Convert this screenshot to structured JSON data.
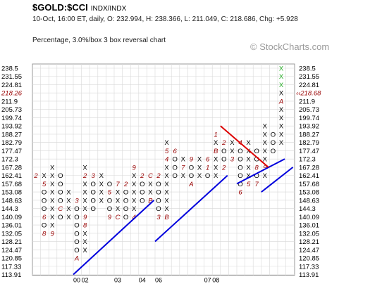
{
  "header": {
    "symbol": "$GOLD:$CCI",
    "subtitle": "INDX/INDX",
    "info": "10-Oct, 16:00 ET, daily, O: 232.994, H: 238.366, L: 211.049, C: 218.686, Chg: +5.928",
    "method": "Percentage, 3.0%/box 3 box reversal chart",
    "watermark": "© StockCharts.com"
  },
  "colors": {
    "x_mark": "#000000",
    "o_mark": "#000000",
    "month_mark": "#990000",
    "recent_x": "#22aa22",
    "trend_up": "#0000dd",
    "trend_down": "#dd0000",
    "grid": "#d8d8d8",
    "last_price": "#990000"
  },
  "chart_data": {
    "type": "point-and-figure",
    "y_labels": [
      "238.5",
      "231.55",
      "224.81",
      "218.26",
      "211.9",
      "205.73",
      "199.74",
      "193.92",
      "188.27",
      "182.79",
      "177.47",
      "172.3",
      "167.28",
      "162.41",
      "157.68",
      "153.08",
      "148.63",
      "144.3",
      "140.09",
      "136.01",
      "132.05",
      "128.21",
      "124.47",
      "120.85",
      "117.33",
      "113.91"
    ],
    "last_price_label": "218.68",
    "last_price_level": "218.26",
    "x_labels": [
      {
        "text": "00",
        "col": 5
      },
      {
        "text": "02",
        "col": 6
      },
      {
        "text": "03",
        "col": 10
      },
      {
        "text": "04",
        "col": 13
      },
      {
        "text": "06",
        "col": 15
      },
      {
        "text": "07",
        "col": 21
      },
      {
        "text": "08",
        "col": 22
      }
    ],
    "columns": [
      {
        "col": 0,
        "type": "X",
        "top": 13,
        "marks": [
          {
            "row": 13,
            "t": "2"
          }
        ]
      },
      {
        "col": 1,
        "type": "O",
        "top": 13,
        "marks": [
          {
            "row": 13,
            "t": "X"
          },
          {
            "row": 14,
            "t": "5"
          },
          {
            "row": 15,
            "t": "O"
          },
          {
            "row": 16,
            "t": "O"
          },
          {
            "row": 17,
            "t": "O"
          },
          {
            "row": 18,
            "t": "6"
          },
          {
            "row": 19,
            "t": "O"
          },
          {
            "row": 20,
            "t": "8"
          }
        ]
      },
      {
        "col": 2,
        "type": "X",
        "top": 12,
        "marks": [
          {
            "row": 12,
            "t": "X"
          },
          {
            "row": 13,
            "t": "X"
          },
          {
            "row": 14,
            "t": "X"
          },
          {
            "row": 15,
            "t": "X"
          },
          {
            "row": 16,
            "t": "X"
          },
          {
            "row": 17,
            "t": "X"
          },
          {
            "row": 18,
            "t": "X"
          },
          {
            "row": 19,
            "t": "X"
          },
          {
            "row": 20,
            "t": "9"
          }
        ]
      },
      {
        "col": 3,
        "type": "O",
        "top": 13,
        "marks": [
          {
            "row": 13,
            "t": "O"
          },
          {
            "row": 14,
            "t": "O"
          },
          {
            "row": 15,
            "t": "O"
          },
          {
            "row": 16,
            "t": "O"
          },
          {
            "row": 17,
            "t": "C"
          },
          {
            "row": 18,
            "t": "O"
          }
        ]
      },
      {
        "col": 4,
        "type": "X",
        "top": 15,
        "marks": [
          {
            "row": 15,
            "t": "X"
          },
          {
            "row": 16,
            "t": "X"
          },
          {
            "row": 17,
            "t": "X"
          },
          {
            "row": 18,
            "t": "X"
          }
        ]
      },
      {
        "col": 5,
        "type": "O",
        "top": 16,
        "marks": [
          {
            "row": 16,
            "t": "3"
          },
          {
            "row": 17,
            "t": "O"
          },
          {
            "row": 18,
            "t": "O"
          },
          {
            "row": 19,
            "t": "O"
          },
          {
            "row": 20,
            "t": "O"
          },
          {
            "row": 21,
            "t": "O"
          },
          {
            "row": 22,
            "t": "O"
          },
          {
            "row": 23,
            "t": "A"
          }
        ]
      },
      {
        "col": 6,
        "type": "X",
        "top": 12,
        "marks": [
          {
            "row": 12,
            "t": "X"
          },
          {
            "row": 13,
            "t": "2"
          },
          {
            "row": 14,
            "t": "X"
          },
          {
            "row": 15,
            "t": "X"
          },
          {
            "row": 16,
            "t": "X"
          },
          {
            "row": 17,
            "t": "X"
          },
          {
            "row": 18,
            "t": "9"
          },
          {
            "row": 19,
            "t": "8"
          },
          {
            "row": 20,
            "t": "X"
          },
          {
            "row": 21,
            "t": "X"
          },
          {
            "row": 22,
            "t": "X"
          }
        ]
      },
      {
        "col": 7,
        "type": "O",
        "top": 13,
        "marks": [
          {
            "row": 13,
            "t": "3"
          },
          {
            "row": 14,
            "t": "O"
          },
          {
            "row": 15,
            "t": "O"
          },
          {
            "row": 16,
            "t": "O"
          },
          {
            "row": 17,
            "t": "O"
          }
        ]
      },
      {
        "col": 8,
        "type": "X",
        "top": 13,
        "marks": [
          {
            "row": 13,
            "t": "X"
          },
          {
            "row": 14,
            "t": "X"
          },
          {
            "row": 15,
            "t": "X"
          },
          {
            "row": 16,
            "t": "X"
          }
        ]
      },
      {
        "col": 9,
        "type": "O",
        "top": 14,
        "marks": [
          {
            "row": 14,
            "t": "O"
          },
          {
            "row": 15,
            "t": "5"
          },
          {
            "row": 16,
            "t": "O"
          },
          {
            "row": 17,
            "t": "O"
          },
          {
            "row": 18,
            "t": "9"
          }
        ]
      },
      {
        "col": 10,
        "type": "X",
        "top": 14,
        "marks": [
          {
            "row": 14,
            "t": "7"
          },
          {
            "row": 15,
            "t": "X"
          },
          {
            "row": 16,
            "t": "X"
          },
          {
            "row": 17,
            "t": "X"
          },
          {
            "row": 18,
            "t": "C"
          }
        ]
      },
      {
        "col": 11,
        "type": "O",
        "top": 14,
        "marks": [
          {
            "row": 14,
            "t": "2"
          },
          {
            "row": 15,
            "t": "O"
          },
          {
            "row": 16,
            "t": "O"
          },
          {
            "row": 17,
            "t": "O"
          },
          {
            "row": 18,
            "t": "O"
          }
        ]
      },
      {
        "col": 12,
        "type": "X",
        "top": 12,
        "marks": [
          {
            "row": 12,
            "t": "9"
          },
          {
            "row": 13,
            "t": "X"
          },
          {
            "row": 14,
            "t": "X"
          },
          {
            "row": 15,
            "t": "X"
          },
          {
            "row": 16,
            "t": "X"
          },
          {
            "row": 17,
            "t": "X"
          },
          {
            "row": 18,
            "t": "4"
          }
        ]
      },
      {
        "col": 13,
        "type": "O",
        "top": 13,
        "marks": [
          {
            "row": 13,
            "t": "2"
          },
          {
            "row": 14,
            "t": "O"
          },
          {
            "row": 15,
            "t": "O"
          },
          {
            "row": 16,
            "t": "O"
          }
        ]
      },
      {
        "col": 14,
        "type": "X",
        "top": 13,
        "marks": [
          {
            "row": 13,
            "t": "C"
          },
          {
            "row": 14,
            "t": "X"
          },
          {
            "row": 15,
            "t": "X"
          },
          {
            "row": 16,
            "t": "B"
          }
        ]
      },
      {
        "col": 15,
        "type": "O",
        "top": 13,
        "marks": [
          {
            "row": 13,
            "t": "2"
          },
          {
            "row": 14,
            "t": "O"
          },
          {
            "row": 15,
            "t": "O"
          },
          {
            "row": 16,
            "t": "O"
          },
          {
            "row": 17,
            "t": "O"
          },
          {
            "row": 18,
            "t": "3"
          }
        ]
      },
      {
        "col": 16,
        "type": "X",
        "top": 9,
        "marks": [
          {
            "row": 9,
            "t": "X"
          },
          {
            "row": 10,
            "t": "5"
          },
          {
            "row": 11,
            "t": "4"
          },
          {
            "row": 12,
            "t": "X"
          },
          {
            "row": 13,
            "t": "X"
          },
          {
            "row": 14,
            "t": "X"
          },
          {
            "row": 15,
            "t": "X"
          },
          {
            "row": 16,
            "t": "X"
          },
          {
            "row": 17,
            "t": "X"
          },
          {
            "row": 18,
            "t": "B"
          }
        ]
      },
      {
        "col": 17,
        "type": "O",
        "top": 10,
        "marks": [
          {
            "row": 10,
            "t": "6"
          },
          {
            "row": 11,
            "t": "O"
          },
          {
            "row": 12,
            "t": "O"
          },
          {
            "row": 13,
            "t": "O"
          }
        ]
      },
      {
        "col": 18,
        "type": "X",
        "top": 11,
        "marks": [
          {
            "row": 11,
            "t": "X"
          },
          {
            "row": 12,
            "t": "7"
          },
          {
            "row": 13,
            "t": "X"
          }
        ]
      },
      {
        "col": 19,
        "type": "O",
        "top": 11,
        "marks": [
          {
            "row": 11,
            "t": "9"
          },
          {
            "row": 12,
            "t": "O"
          },
          {
            "row": 13,
            "t": "O"
          },
          {
            "row": 14,
            "t": "A"
          }
        ]
      },
      {
        "col": 20,
        "type": "X",
        "top": 11,
        "marks": [
          {
            "row": 11,
            "t": "X"
          },
          {
            "row": 12,
            "t": "X"
          },
          {
            "row": 13,
            "t": "X"
          }
        ]
      },
      {
        "col": 21,
        "type": "O",
        "top": 11,
        "marks": [
          {
            "row": 11,
            "t": "6"
          },
          {
            "row": 12,
            "t": "1"
          },
          {
            "row": 13,
            "t": "O"
          }
        ]
      },
      {
        "col": 22,
        "type": "X",
        "top": 8,
        "marks": [
          {
            "row": 8,
            "t": "1"
          },
          {
            "row": 9,
            "t": "X"
          },
          {
            "row": 10,
            "t": "B"
          },
          {
            "row": 11,
            "t": "X"
          },
          {
            "row": 12,
            "t": "X"
          },
          {
            "row": 13,
            "t": "X"
          }
        ]
      },
      {
        "col": 23,
        "type": "O",
        "top": 9,
        "marks": [
          {
            "row": 9,
            "t": "2"
          },
          {
            "row": 10,
            "t": "O"
          },
          {
            "row": 11,
            "t": "O"
          },
          {
            "row": 12,
            "t": "2"
          }
        ]
      },
      {
        "col": 24,
        "type": "X",
        "top": 9,
        "marks": [
          {
            "row": 9,
            "t": "X"
          },
          {
            "row": 10,
            "t": "X"
          },
          {
            "row": 11,
            "t": "3"
          }
        ]
      },
      {
        "col": 25,
        "type": "O",
        "top": 9,
        "marks": [
          {
            "row": 9,
            "t": "4"
          },
          {
            "row": 10,
            "t": "O"
          },
          {
            "row": 11,
            "t": "O"
          },
          {
            "row": 12,
            "t": "O"
          },
          {
            "row": 13,
            "t": "O"
          },
          {
            "row": 14,
            "t": "O"
          },
          {
            "row": 15,
            "t": "6"
          }
        ]
      },
      {
        "col": 26,
        "type": "X",
        "top": 9,
        "marks": [
          {
            "row": 9,
            "t": "X"
          },
          {
            "row": 10,
            "t": "X"
          },
          {
            "row": 11,
            "t": "X"
          },
          {
            "row": 12,
            "t": "X"
          },
          {
            "row": 13,
            "t": "X"
          },
          {
            "row": 14,
            "t": "5"
          }
        ]
      },
      {
        "col": 27,
        "type": "O",
        "top": 10,
        "marks": [
          {
            "row": 10,
            "t": "O"
          },
          {
            "row": 11,
            "t": "O"
          },
          {
            "row": 12,
            "t": "8"
          },
          {
            "row": 13,
            "t": "O"
          },
          {
            "row": 14,
            "t": "7"
          }
        ]
      },
      {
        "col": 28,
        "type": "X",
        "top": 7,
        "marks": [
          {
            "row": 7,
            "t": "X"
          },
          {
            "row": 8,
            "t": "X"
          },
          {
            "row": 9,
            "t": "X"
          },
          {
            "row": 10,
            "t": "X"
          },
          {
            "row": 11,
            "t": "X"
          },
          {
            "row": 12,
            "t": "9"
          },
          {
            "row": 13,
            "t": "X"
          }
        ]
      },
      {
        "col": 29,
        "type": "O",
        "top": 8,
        "marks": [
          {
            "row": 8,
            "t": "O"
          },
          {
            "row": 9,
            "t": "O"
          },
          {
            "row": 10,
            "t": "O"
          }
        ]
      },
      {
        "col": 30,
        "type": "X",
        "top": 0,
        "marks": [
          {
            "row": 0,
            "t": "X"
          },
          {
            "row": 1,
            "t": "X"
          },
          {
            "row": 2,
            "t": "X"
          },
          {
            "row": 3,
            "t": "X"
          },
          {
            "row": 4,
            "t": "A"
          },
          {
            "row": 5,
            "t": "X"
          },
          {
            "row": 6,
            "t": "X"
          },
          {
            "row": 7,
            "t": "X"
          },
          {
            "row": 8,
            "t": "X"
          },
          {
            "row": 9,
            "t": "X"
          }
        ]
      }
    ],
    "trendlines": [
      {
        "kind": "up",
        "from": {
          "col": 5,
          "row": 25
        },
        "to": {
          "col": 14,
          "row": 16
        }
      },
      {
        "kind": "up",
        "from": {
          "col": 15,
          "row": 21
        },
        "to": {
          "col": 23,
          "row": 13
        }
      },
      {
        "kind": "up",
        "from": {
          "col": 25,
          "row": 14
        },
        "to": {
          "col": 30,
          "row": 11
        }
      },
      {
        "kind": "down",
        "from": {
          "col": 23,
          "row": 7
        },
        "to": {
          "col": 28,
          "row": 12
        }
      },
      {
        "kind": "up",
        "from": {
          "col": 28,
          "row": 15
        },
        "to": {
          "col": 31,
          "row": 12
        }
      }
    ]
  }
}
